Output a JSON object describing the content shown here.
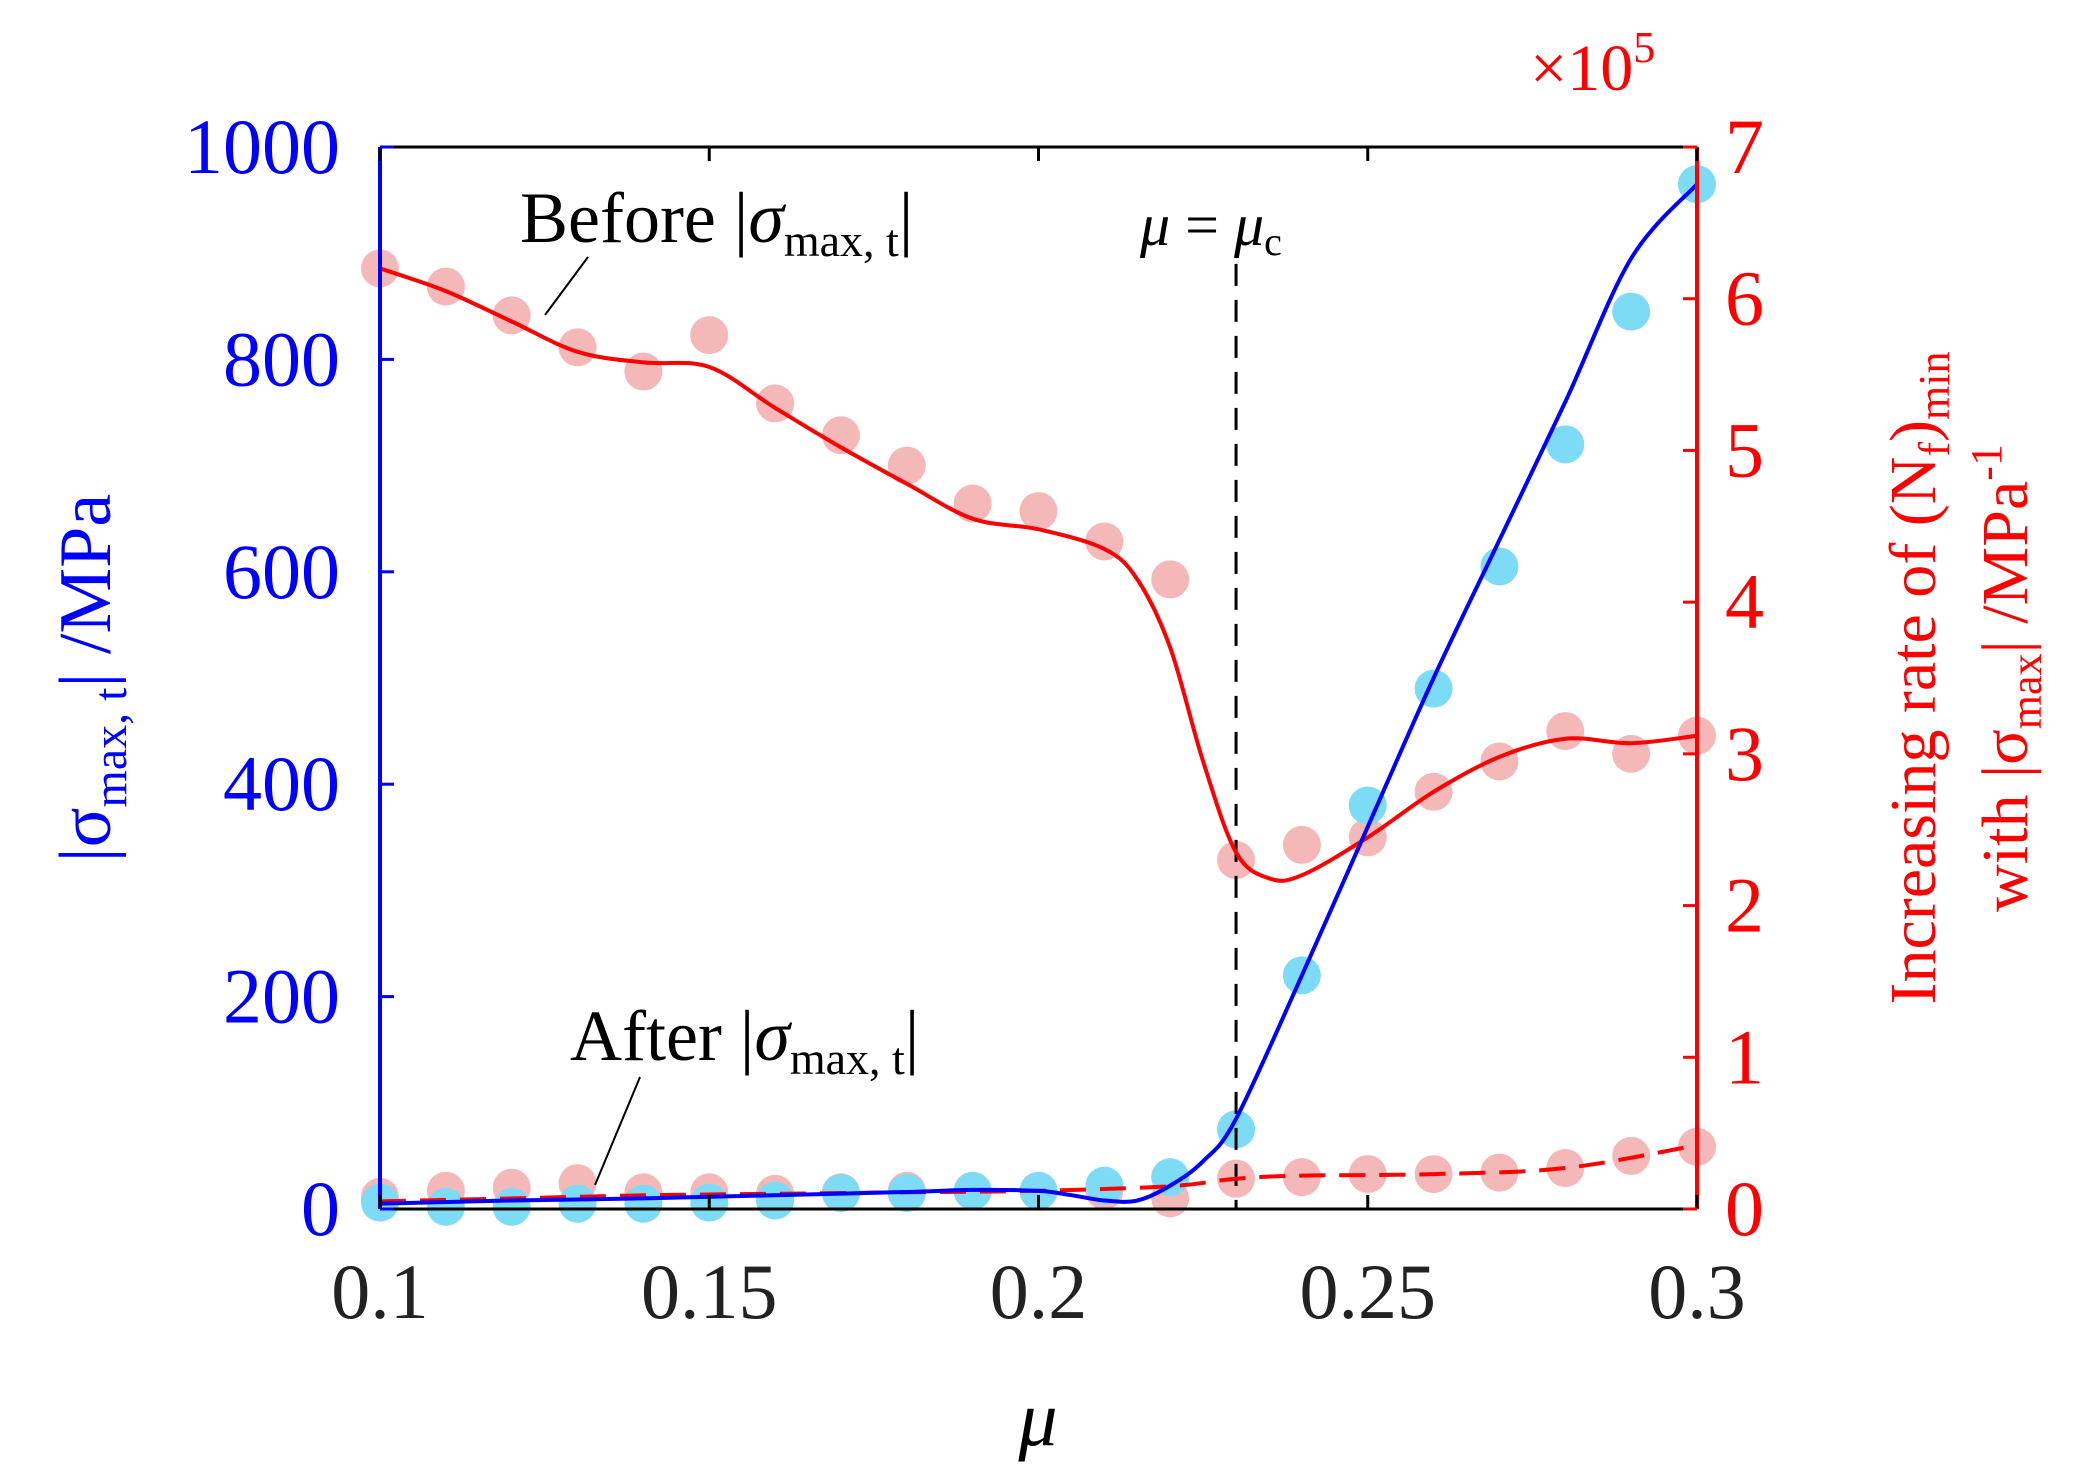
{
  "chart_data": {
    "type": "line",
    "x_label": "μ",
    "x_lim": [
      0.1,
      0.3
    ],
    "x_ticks": [
      "0.1",
      "0.15",
      "0.2",
      "0.25",
      "0.3"
    ],
    "x_tick_values": [
      0.1,
      0.15,
      0.2,
      0.25,
      0.3
    ],
    "left_axis": {
      "label_prefix": "|σ",
      "label_sub": "max, t",
      "label_suffix": "| /MPa",
      "lim": [
        0,
        1000
      ],
      "ticks": [
        "0",
        "200",
        "400",
        "600",
        "800",
        "1000"
      ],
      "tick_values": [
        0,
        200,
        400,
        600,
        800,
        1000
      ],
      "color": "#0000ff"
    },
    "right_axis": {
      "label_line1_prefix": "Increasing rate of (N",
      "label_line1_sub_f": "f",
      "label_line1_mid": ")",
      "label_line1_sub_min": "min",
      "label_line2_prefix": "with |σ",
      "label_line2_sub": "max",
      "label_line2_suffix": "| /MPa",
      "label_line2_sup": "-1",
      "lim": [
        0,
        7
      ],
      "ticks": [
        "0",
        "1",
        "2",
        "3",
        "4",
        "5",
        "6",
        "7"
      ],
      "tick_values": [
        0,
        1,
        2,
        3,
        4,
        5,
        6,
        7
      ],
      "multiplier_base": "×10",
      "multiplier_exp": "5",
      "color": "#ff0000"
    },
    "series": [
      {
        "name": "Before |σmax, t| (fit)",
        "axis": "right",
        "style": "solid",
        "color": "#ff0000",
        "x": [
          0.1,
          0.11,
          0.12,
          0.13,
          0.14,
          0.15,
          0.16,
          0.17,
          0.18,
          0.19,
          0.2,
          0.21,
          0.215,
          0.22,
          0.225,
          0.23,
          0.235,
          0.24,
          0.25,
          0.26,
          0.27,
          0.28,
          0.29,
          0.3
        ],
        "values": [
          6.2,
          6.05,
          5.85,
          5.65,
          5.58,
          5.55,
          5.28,
          5.02,
          4.78,
          4.55,
          4.48,
          4.35,
          4.15,
          3.7,
          2.95,
          2.35,
          2.18,
          2.2,
          2.45,
          2.75,
          2.98,
          3.1,
          3.07,
          3.12
        ]
      },
      {
        "name": "Before |σmax, t| (data)",
        "axis": "right",
        "style": "markers",
        "color": "#f4b8b8",
        "x": [
          0.1,
          0.11,
          0.12,
          0.13,
          0.14,
          0.15,
          0.16,
          0.17,
          0.18,
          0.19,
          0.2,
          0.21,
          0.22,
          0.23,
          0.24,
          0.25,
          0.26,
          0.27,
          0.28,
          0.29,
          0.3
        ],
        "values": [
          6.2,
          6.08,
          5.89,
          5.68,
          5.52,
          5.76,
          5.31,
          5.1,
          4.9,
          4.65,
          4.6,
          4.4,
          4.15,
          2.3,
          2.4,
          2.45,
          2.75,
          2.95,
          3.15,
          3.0,
          3.12
        ]
      },
      {
        "name": "After |σmax, t| (fit)",
        "axis": "right",
        "style": "dashed",
        "color": "#ff0000",
        "x": [
          0.1,
          0.12,
          0.14,
          0.16,
          0.18,
          0.2,
          0.22,
          0.23,
          0.24,
          0.26,
          0.28,
          0.3
        ],
        "values": [
          0.05,
          0.07,
          0.09,
          0.1,
          0.11,
          0.12,
          0.15,
          0.2,
          0.22,
          0.23,
          0.27,
          0.42
        ]
      },
      {
        "name": "After |σmax, t| (data)",
        "axis": "right",
        "style": "markers",
        "color": "#f4b8b8",
        "x": [
          0.1,
          0.11,
          0.12,
          0.13,
          0.14,
          0.15,
          0.16,
          0.17,
          0.18,
          0.19,
          0.2,
          0.21,
          0.22,
          0.23,
          0.24,
          0.25,
          0.26,
          0.27,
          0.28,
          0.29,
          0.3
        ],
        "values": [
          0.08,
          0.12,
          0.14,
          0.17,
          0.11,
          0.11,
          0.1,
          0.11,
          0.12,
          0.12,
          0.12,
          0.12,
          0.07,
          0.2,
          0.21,
          0.23,
          0.23,
          0.24,
          0.27,
          0.35,
          0.41
        ]
      },
      {
        "name": "|σmax, t| (fit)",
        "axis": "left",
        "style": "solid",
        "color": "#0000ff",
        "x": [
          0.1,
          0.12,
          0.14,
          0.16,
          0.18,
          0.19,
          0.2,
          0.205,
          0.21,
          0.215,
          0.22,
          0.225,
          0.23,
          0.24,
          0.25,
          0.26,
          0.27,
          0.28,
          0.29,
          0.3
        ],
        "values": [
          5,
          8,
          10,
          13,
          16,
          18,
          17,
          13,
          8,
          8,
          22,
          45,
          85,
          220,
          360,
          500,
          630,
          760,
          895,
          965
        ]
      },
      {
        "name": "|σmax, t| (data)",
        "axis": "left",
        "style": "markers",
        "color": "#7ddbf5",
        "x": [
          0.1,
          0.11,
          0.12,
          0.13,
          0.14,
          0.15,
          0.16,
          0.17,
          0.18,
          0.19,
          0.2,
          0.21,
          0.22,
          0.23,
          0.24,
          0.25,
          0.26,
          0.27,
          0.28,
          0.29,
          0.3
        ],
        "values": [
          6,
          2,
          2,
          5,
          5,
          6,
          8,
          15,
          15,
          17,
          17,
          22,
          30,
          75,
          220,
          380,
          490,
          605,
          720,
          845,
          965
        ]
      }
    ],
    "reference_line": {
      "x": 0.23,
      "style": "dashed",
      "color": "#000000",
      "y_top_value": 890
    },
    "annotations": {
      "mu_c_mu": "μ",
      "mu_c_eq": " = ",
      "mu_c_mu2": "μ",
      "mu_c_sub": "c",
      "before_word": "Before |",
      "before_sigma": "σ",
      "before_sub": "max, t",
      "before_close": "|",
      "after_word": "After |",
      "after_sigma": "σ",
      "after_sub": "max, t",
      "after_close": "|"
    }
  }
}
